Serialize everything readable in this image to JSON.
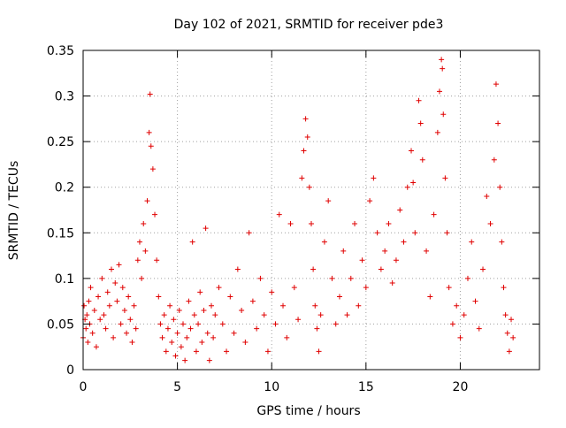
{
  "chart_data": {
    "type": "scatter",
    "title": "Day 102 of 2021, SRMTID for receiver pde3",
    "xlabel": "GPS time / hours",
    "ylabel": "SRMTID / TECUs",
    "xlim": [
      0,
      24.2
    ],
    "ylim": [
      0,
      0.35
    ],
    "xticks": [
      0,
      5,
      10,
      15,
      20
    ],
    "yticks": [
      0,
      0.05,
      0.1,
      0.15,
      0.2,
      0.25,
      0.3,
      0.35
    ],
    "xtick_labels": [
      "0",
      "5",
      "10",
      "15",
      "20"
    ],
    "ytick_labels": [
      "0",
      "0.05",
      "0.1",
      "0.15",
      "0.2",
      "0.25",
      "0.3",
      "0.35"
    ],
    "grid": true,
    "series": [
      {
        "name": "SRMTID",
        "marker": "plus",
        "color": "#e00000",
        "points": [
          [
            0.0,
            0.035
          ],
          [
            0.05,
            0.07
          ],
          [
            0.1,
            0.055
          ],
          [
            0.15,
            0.045
          ],
          [
            0.2,
            0.06
          ],
          [
            0.25,
            0.03
          ],
          [
            0.3,
            0.075
          ],
          [
            0.35,
            0.05
          ],
          [
            0.4,
            0.09
          ],
          [
            0.5,
            0.04
          ],
          [
            0.6,
            0.065
          ],
          [
            0.7,
            0.025
          ],
          [
            0.8,
            0.08
          ],
          [
            0.9,
            0.055
          ],
          [
            1.0,
            0.1
          ],
          [
            1.1,
            0.06
          ],
          [
            1.2,
            0.045
          ],
          [
            1.3,
            0.085
          ],
          [
            1.4,
            0.07
          ],
          [
            1.5,
            0.11
          ],
          [
            1.6,
            0.035
          ],
          [
            1.7,
            0.095
          ],
          [
            1.8,
            0.075
          ],
          [
            1.9,
            0.115
          ],
          [
            2.0,
            0.05
          ],
          [
            2.1,
            0.09
          ],
          [
            2.2,
            0.065
          ],
          [
            2.3,
            0.04
          ],
          [
            2.4,
            0.08
          ],
          [
            2.5,
            0.055
          ],
          [
            2.6,
            0.03
          ],
          [
            2.7,
            0.07
          ],
          [
            2.8,
            0.045
          ],
          [
            2.9,
            0.12
          ],
          [
            3.0,
            0.14
          ],
          [
            3.1,
            0.1
          ],
          [
            3.2,
            0.16
          ],
          [
            3.3,
            0.13
          ],
          [
            3.4,
            0.185
          ],
          [
            3.5,
            0.26
          ],
          [
            3.55,
            0.302
          ],
          [
            3.6,
            0.245
          ],
          [
            3.7,
            0.22
          ],
          [
            3.8,
            0.17
          ],
          [
            3.9,
            0.12
          ],
          [
            4.0,
            0.08
          ],
          [
            4.1,
            0.05
          ],
          [
            4.2,
            0.035
          ],
          [
            4.3,
            0.06
          ],
          [
            4.4,
            0.02
          ],
          [
            4.5,
            0.045
          ],
          [
            4.6,
            0.07
          ],
          [
            4.7,
            0.03
          ],
          [
            4.8,
            0.055
          ],
          [
            4.9,
            0.015
          ],
          [
            5.0,
            0.04
          ],
          [
            5.1,
            0.065
          ],
          [
            5.2,
            0.025
          ],
          [
            5.3,
            0.05
          ],
          [
            5.4,
            0.01
          ],
          [
            5.5,
            0.035
          ],
          [
            5.6,
            0.075
          ],
          [
            5.7,
            0.045
          ],
          [
            5.8,
            0.14
          ],
          [
            5.9,
            0.06
          ],
          [
            6.0,
            0.02
          ],
          [
            6.1,
            0.05
          ],
          [
            6.2,
            0.085
          ],
          [
            6.3,
            0.03
          ],
          [
            6.4,
            0.065
          ],
          [
            6.5,
            0.155
          ],
          [
            6.6,
            0.04
          ],
          [
            6.7,
            0.01
          ],
          [
            6.8,
            0.07
          ],
          [
            6.9,
            0.035
          ],
          [
            7.0,
            0.06
          ],
          [
            7.2,
            0.09
          ],
          [
            7.4,
            0.05
          ],
          [
            7.6,
            0.02
          ],
          [
            7.8,
            0.08
          ],
          [
            8.0,
            0.04
          ],
          [
            8.2,
            0.11
          ],
          [
            8.4,
            0.065
          ],
          [
            8.6,
            0.03
          ],
          [
            8.8,
            0.15
          ],
          [
            9.0,
            0.075
          ],
          [
            9.2,
            0.045
          ],
          [
            9.4,
            0.1
          ],
          [
            9.6,
            0.06
          ],
          [
            9.8,
            0.02
          ],
          [
            10.0,
            0.085
          ],
          [
            10.2,
            0.05
          ],
          [
            10.4,
            0.17
          ],
          [
            10.6,
            0.07
          ],
          [
            10.8,
            0.035
          ],
          [
            11.0,
            0.16
          ],
          [
            11.2,
            0.09
          ],
          [
            11.4,
            0.055
          ],
          [
            11.6,
            0.21
          ],
          [
            11.7,
            0.24
          ],
          [
            11.8,
            0.275
          ],
          [
            11.9,
            0.255
          ],
          [
            12.0,
            0.2
          ],
          [
            12.1,
            0.16
          ],
          [
            12.2,
            0.11
          ],
          [
            12.3,
            0.07
          ],
          [
            12.4,
            0.045
          ],
          [
            12.5,
            0.02
          ],
          [
            12.6,
            0.06
          ],
          [
            12.8,
            0.14
          ],
          [
            13.0,
            0.185
          ],
          [
            13.2,
            0.1
          ],
          [
            13.4,
            0.05
          ],
          [
            13.6,
            0.08
          ],
          [
            13.8,
            0.13
          ],
          [
            14.0,
            0.06
          ],
          [
            14.2,
            0.1
          ],
          [
            14.4,
            0.16
          ],
          [
            14.6,
            0.07
          ],
          [
            14.8,
            0.12
          ],
          [
            15.0,
            0.09
          ],
          [
            15.2,
            0.185
          ],
          [
            15.4,
            0.21
          ],
          [
            15.6,
            0.15
          ],
          [
            15.8,
            0.11
          ],
          [
            16.0,
            0.13
          ],
          [
            16.2,
            0.16
          ],
          [
            16.4,
            0.095
          ],
          [
            16.6,
            0.12
          ],
          [
            16.8,
            0.175
          ],
          [
            17.0,
            0.14
          ],
          [
            17.2,
            0.2
          ],
          [
            17.4,
            0.24
          ],
          [
            17.5,
            0.205
          ],
          [
            17.6,
            0.15
          ],
          [
            17.8,
            0.295
          ],
          [
            17.9,
            0.27
          ],
          [
            18.0,
            0.23
          ],
          [
            18.2,
            0.13
          ],
          [
            18.4,
            0.08
          ],
          [
            18.6,
            0.17
          ],
          [
            18.8,
            0.26
          ],
          [
            18.9,
            0.305
          ],
          [
            19.0,
            0.34
          ],
          [
            19.05,
            0.33
          ],
          [
            19.1,
            0.28
          ],
          [
            19.2,
            0.21
          ],
          [
            19.3,
            0.15
          ],
          [
            19.4,
            0.09
          ],
          [
            19.6,
            0.05
          ],
          [
            19.8,
            0.07
          ],
          [
            20.0,
            0.035
          ],
          [
            20.2,
            0.06
          ],
          [
            20.4,
            0.1
          ],
          [
            20.6,
            0.14
          ],
          [
            20.8,
            0.075
          ],
          [
            21.0,
            0.045
          ],
          [
            21.2,
            0.11
          ],
          [
            21.4,
            0.19
          ],
          [
            21.6,
            0.16
          ],
          [
            21.8,
            0.23
          ],
          [
            21.9,
            0.313
          ],
          [
            22.0,
            0.27
          ],
          [
            22.1,
            0.2
          ],
          [
            22.2,
            0.14
          ],
          [
            22.3,
            0.09
          ],
          [
            22.4,
            0.06
          ],
          [
            22.5,
            0.04
          ],
          [
            22.6,
            0.02
          ],
          [
            22.7,
            0.055
          ],
          [
            22.8,
            0.035
          ]
        ]
      }
    ]
  }
}
